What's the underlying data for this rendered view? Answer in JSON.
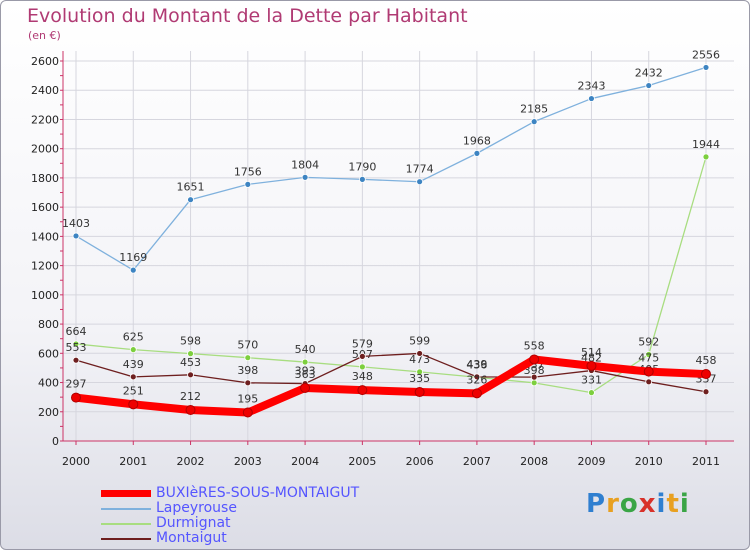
{
  "title": "Evolution du Montant de la Dette par Habitant",
  "unit_label": "(en €)",
  "logo_text": "Proxiti",
  "chart_data": {
    "type": "line",
    "title": "Evolution du Montant de la Dette par Habitant",
    "subtitle": "(en €)",
    "x": [
      "2000",
      "2001",
      "2002",
      "2003",
      "2004",
      "2005",
      "2006",
      "2007",
      "2008",
      "2009",
      "2010",
      "2011"
    ],
    "ylim": [
      0,
      2600
    ],
    "yticks": [
      0,
      200,
      400,
      600,
      800,
      1000,
      1200,
      1400,
      1600,
      1800,
      2000,
      2200,
      2400,
      2600
    ],
    "grid": true,
    "legend_position": "bottom-left",
    "series": [
      {
        "name": "Lapeyrouse",
        "color": "#7fb1dd",
        "marker_color": "#3d84c2",
        "values": [
          1403,
          1169,
          1651,
          1756,
          1804,
          1790,
          1774,
          1968,
          2185,
          2343,
          2432,
          2556
        ],
        "labels": [
          "1403",
          "1169",
          "1651",
          "1756",
          "1804",
          "1790",
          "1774",
          "1968",
          "2185",
          "2343",
          "2432",
          "2556"
        ]
      },
      {
        "name": "Durmignat",
        "color": "#a8dd80",
        "marker_color": "#7dcf3e",
        "values": [
          664,
          625,
          598,
          570,
          540,
          507,
          473,
          436,
          398,
          331,
          592,
          1944
        ],
        "labels": [
          "664",
          "625",
          "598",
          "570",
          "540",
          "507",
          "473",
          "436",
          "398",
          "331",
          "592",
          "1944"
        ]
      },
      {
        "name": "Montaigut",
        "color": "#6e1f1f",
        "marker_color": "#6e1f1f",
        "values": [
          553,
          439,
          453,
          398,
          393,
          579,
          599,
          439,
          437,
          482,
          405,
          337
        ],
        "labels": [
          "553",
          "439",
          "453",
          "398",
          "393",
          "579",
          "599",
          "439",
          "437",
          "482",
          "405",
          "337"
        ]
      },
      {
        "name": "BUXIèRES-SOUS-MONTAIGUT",
        "color": "#ff0000",
        "marker_color": "#ee0000",
        "values": [
          297,
          251,
          212,
          195,
          363,
          348,
          335,
          326,
          558,
          514,
          475,
          458
        ],
        "labels": [
          "297",
          "251",
          "212",
          "195",
          "363",
          "348",
          "335",
          "326",
          "558",
          "514",
          "475",
          "458"
        ]
      }
    ]
  }
}
